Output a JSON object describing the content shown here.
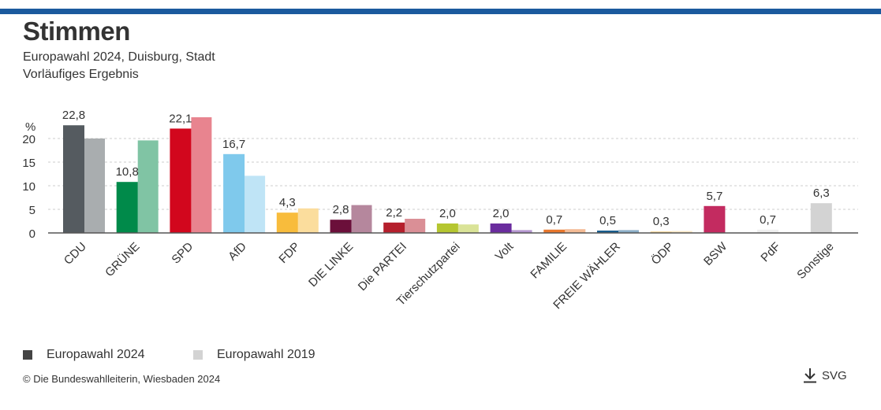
{
  "header": {
    "title": "Stimmen",
    "subtitle_line1": "Europawahl 2024, Duisburg, Stadt",
    "subtitle_line2": "Vorläufiges Ergebnis"
  },
  "chart_data": {
    "type": "bar",
    "ylabel": "%",
    "ylim": [
      0,
      25
    ],
    "yticks": [
      0,
      5,
      10,
      15,
      20
    ],
    "grid": true,
    "legend_placement": "bottom-left",
    "categories": [
      "CDU",
      "GRÜNE",
      "SPD",
      "AfD",
      "FDP",
      "DIE LINKE",
      "Die PARTEI",
      "Tierschutzpartei",
      "Volt",
      "FAMILIE",
      "FREIE WÄHLER",
      "ÖDP",
      "BSW",
      "PdF",
      "Sonstige"
    ],
    "series": [
      {
        "name": "Europawahl 2024",
        "values": [
          22.8,
          10.8,
          22.1,
          16.7,
          4.3,
          2.8,
          2.2,
          2.0,
          2.0,
          0.7,
          0.5,
          0.3,
          5.7,
          0.7,
          6.3
        ],
        "labels": [
          "22,8",
          "10,8",
          "22,1",
          "16,7",
          "4,3",
          "2,8",
          "2,2",
          "2,0",
          "2,0",
          "0,7",
          "0,5",
          "0,3",
          "5,7",
          "0,7",
          "6,3"
        ],
        "colors": [
          "#555b60",
          "#008a4a",
          "#d2071d",
          "#7fc9ec",
          "#f8bc3c",
          "#6b0f3a",
          "#b51f2c",
          "#b5c630",
          "#6a2c9e",
          "#e8772c",
          "#1a5e8e",
          "#f3d08a",
          "#c32b60",
          "#efefef",
          "#d3d3d3"
        ]
      },
      {
        "name": "Europawahl 2019",
        "values": [
          20.0,
          19.6,
          24.5,
          12.1,
          5.2,
          5.9,
          3.0,
          1.8,
          0.6,
          0.8,
          0.6,
          0.4,
          null,
          null,
          null
        ],
        "colors": [
          "#a9adaf",
          "#80c4a4",
          "#e8848f",
          "#bfe4f6",
          "#fbdd9d",
          "#b5879d",
          "#da8f96",
          "#dae397",
          "#b496cf",
          "#f3bb95",
          "#8caec7",
          "#f9e7c4",
          "#e195b0",
          "#f7f7f7",
          "#e9e9e9"
        ]
      }
    ]
  },
  "legend": {
    "items": [
      {
        "label": "Europawahl 2024",
        "color": "#444444"
      },
      {
        "label": "Europawahl 2019",
        "color": "#d3d3d3"
      }
    ]
  },
  "footer": {
    "copyright": "© Die Bundeswahlleiterin, Wiesbaden 2024",
    "download_label": "SVG",
    "download_icon": "download-icon"
  }
}
